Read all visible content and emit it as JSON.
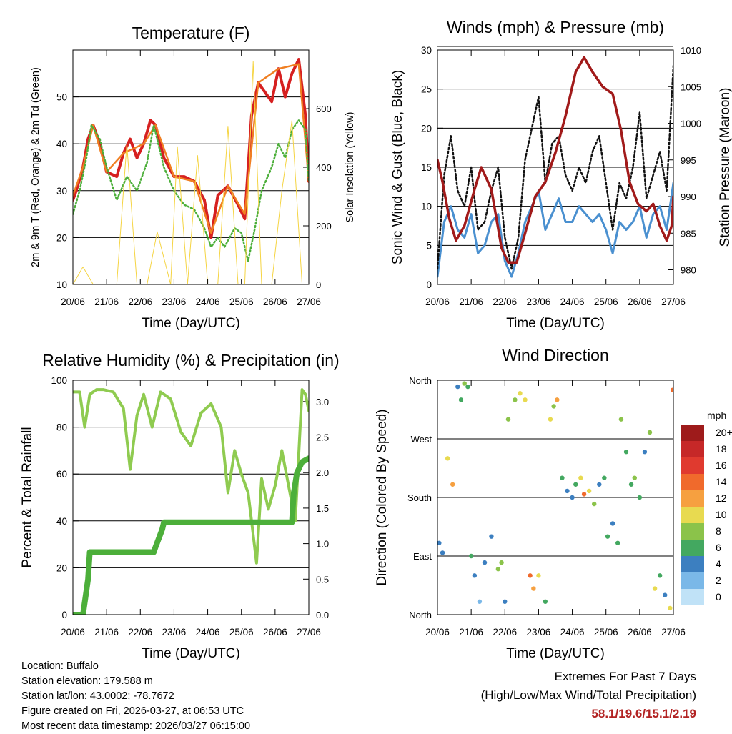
{
  "x_ticks": [
    "20/06",
    "21/06",
    "22/06",
    "23/06",
    "24/06",
    "25/06",
    "26/06",
    "27/06"
  ],
  "chart_data": [
    {
      "type": "line",
      "title": "Temperature (F)",
      "xlabel": "Time (Day/UTC)",
      "ylabel": "2m & 9m T (Red, Orange) & 2m Td (Green)",
      "ylabel_right": "Solar Insolation (Yellow)",
      "xlim": [
        0,
        7
      ],
      "ylim": [
        10,
        60
      ],
      "ylim_right": [
        0,
        800
      ],
      "yticks": [
        "10",
        "20",
        "30",
        "40",
        "50"
      ],
      "yticks_right": [
        "0",
        "200",
        "400",
        "600"
      ],
      "series": [
        {
          "name": "2m T",
          "color": "#d62020",
          "axis": "left",
          "x": [
            0,
            0.1,
            0.3,
            0.45,
            0.6,
            0.8,
            1.0,
            1.3,
            1.5,
            1.7,
            1.9,
            2.1,
            2.3,
            2.45,
            2.7,
            3.0,
            3.3,
            3.6,
            3.9,
            4.1,
            4.3,
            4.6,
            4.9,
            5.1,
            5.3,
            5.5,
            5.7,
            5.9,
            6.1,
            6.3,
            6.5,
            6.7,
            6.9,
            7.0
          ],
          "values": [
            28,
            30,
            35,
            41,
            44,
            40,
            34,
            33,
            38,
            41,
            37,
            40,
            45,
            44,
            37,
            33,
            33,
            32,
            28,
            20,
            29,
            31,
            27,
            24,
            46,
            53,
            51,
            49,
            56,
            50,
            55,
            58,
            46,
            32
          ]
        },
        {
          "name": "9m T",
          "color": "#f07f22",
          "axis": "left",
          "x": [
            0,
            0.3,
            0.6,
            1.0,
            1.5,
            2.1,
            2.45,
            3.0,
            3.6,
            4.1,
            4.6,
            5.1,
            5.5,
            6.1,
            6.7,
            7.0
          ],
          "values": [
            29,
            35,
            44,
            34,
            38,
            40,
            44,
            33,
            32,
            21,
            31,
            25,
            53,
            56,
            57,
            32
          ]
        },
        {
          "name": "2m Td",
          "color": "#4caf3a",
          "axis": "left",
          "x": [
            0,
            0.2,
            0.4,
            0.55,
            0.8,
            1.0,
            1.3,
            1.6,
            1.9,
            2.2,
            2.4,
            2.7,
            3.0,
            3.3,
            3.6,
            3.9,
            4.1,
            4.3,
            4.5,
            4.8,
            5.0,
            5.2,
            5.4,
            5.6,
            5.9,
            6.1,
            6.3,
            6.5,
            6.7,
            6.9,
            7.0
          ],
          "values": [
            25,
            30,
            37,
            44,
            41,
            35,
            28,
            33,
            30,
            36,
            44,
            35,
            30,
            27,
            26,
            22,
            18,
            20,
            18,
            22,
            21,
            15,
            22,
            30,
            35,
            40,
            37,
            43,
            45,
            43,
            32
          ]
        },
        {
          "name": "Solar Insolation",
          "color": "#f5d442",
          "axis": "right",
          "x": [
            0,
            0.3,
            0.6,
            1.3,
            1.6,
            1.9,
            2.2,
            2.5,
            2.9,
            3.1,
            3.4,
            3.7,
            4.0,
            4.3,
            4.6,
            4.9,
            5.1,
            5.35,
            5.6,
            5.9,
            6.2,
            6.5,
            6.8,
            7.0
          ],
          "values": [
            0,
            60,
            0,
            0,
            480,
            0,
            0,
            180,
            0,
            470,
            0,
            440,
            0,
            0,
            540,
            0,
            0,
            760,
            0,
            0,
            320,
            560,
            0,
            0
          ]
        }
      ]
    },
    {
      "type": "line",
      "title": "Winds (mph) & Pressure (mb)",
      "xlabel": "Time (Day/UTC)",
      "ylabel": "Sonic Wind & Gust (Blue, Black)",
      "ylabel_right": "Station Pressure (Maroon)",
      "xlim": [
        0,
        7
      ],
      "ylim": [
        0,
        30
      ],
      "ylim_right": [
        978,
        1010
      ],
      "yticks": [
        "0",
        "5",
        "10",
        "15",
        "20",
        "25",
        "30"
      ],
      "yticks_right": [
        "980",
        "985",
        "990",
        "995",
        "1000",
        "1005",
        "1010"
      ],
      "series": [
        {
          "name": "Sonic Wind",
          "color": "#4a90d0",
          "axis": "left",
          "x": [
            0,
            0.2,
            0.4,
            0.6,
            0.8,
            1.0,
            1.2,
            1.4,
            1.6,
            1.8,
            2.0,
            2.2,
            2.4,
            2.6,
            2.8,
            3.0,
            3.2,
            3.4,
            3.6,
            3.8,
            4.0,
            4.2,
            4.4,
            4.6,
            4.8,
            5.0,
            5.2,
            5.4,
            5.6,
            5.8,
            6.0,
            6.2,
            6.4,
            6.6,
            6.8,
            7.0
          ],
          "values": [
            1,
            8,
            10,
            7,
            6,
            9,
            4,
            5,
            8,
            9,
            3,
            1,
            4,
            8,
            10,
            12,
            7,
            9,
            11,
            8,
            8,
            10,
            9,
            8,
            9,
            7,
            4,
            8,
            7,
            8,
            10,
            6,
            9,
            10,
            7,
            13
          ]
        },
        {
          "name": "Gust",
          "color": "#111111",
          "axis": "left",
          "x": [
            0,
            0.2,
            0.4,
            0.6,
            0.8,
            1.0,
            1.2,
            1.4,
            1.6,
            1.8,
            2.0,
            2.2,
            2.4,
            2.6,
            2.8,
            3.0,
            3.2,
            3.4,
            3.6,
            3.8,
            4.0,
            4.2,
            4.4,
            4.6,
            4.8,
            5.0,
            5.2,
            5.4,
            5.6,
            5.8,
            6.0,
            6.2,
            6.4,
            6.6,
            6.8,
            7.0
          ],
          "values": [
            2,
            14,
            19,
            12,
            10,
            15,
            7,
            8,
            12,
            15,
            6,
            2,
            6,
            16,
            20,
            24,
            13,
            18,
            19,
            14,
            12,
            15,
            13,
            17,
            19,
            13,
            7,
            13,
            11,
            15,
            22,
            11,
            14,
            17,
            12,
            28
          ]
        },
        {
          "name": "Station Pressure",
          "color": "#a11a1a",
          "axis": "right",
          "x": [
            0,
            0.15,
            0.35,
            0.55,
            0.8,
            1.1,
            1.3,
            1.6,
            1.9,
            2.1,
            2.35,
            2.6,
            2.9,
            3.2,
            3.5,
            3.8,
            4.1,
            4.35,
            4.6,
            4.9,
            5.2,
            5.45,
            5.7,
            5.95,
            6.2,
            6.4,
            6.6,
            6.8,
            6.95,
            7.0
          ],
          "values": [
            995,
            992,
            987,
            984,
            986,
            991,
            994,
            991,
            983,
            981,
            981,
            985,
            990,
            992,
            996,
            1001,
            1007,
            1009,
            1007,
            1005,
            1004,
            999,
            992,
            989,
            988,
            989,
            986,
            984,
            986,
            990
          ]
        }
      ]
    },
    {
      "type": "line",
      "title": "Relative Humidity (%) & Precipitation (in)",
      "xlabel": "Time (Day/UTC)",
      "ylabel": "Percent & Total Rainfall",
      "xlim": [
        0,
        7
      ],
      "ylim": [
        0,
        100
      ],
      "ylim_right": [
        0,
        3.3
      ],
      "yticks": [
        "0",
        "20",
        "40",
        "60",
        "80",
        "100"
      ],
      "yticks_right": [
        "0.0",
        "0.5",
        "1.0",
        "1.5",
        "2.0",
        "2.5",
        "3.0"
      ],
      "series": [
        {
          "name": "Relative Humidity",
          "color": "#8fcb50",
          "axis": "left",
          "x": [
            0,
            0.2,
            0.35,
            0.5,
            0.7,
            0.9,
            1.2,
            1.5,
            1.7,
            1.9,
            2.1,
            2.35,
            2.6,
            2.9,
            3.2,
            3.5,
            3.8,
            4.1,
            4.4,
            4.6,
            4.8,
            5.0,
            5.2,
            5.3,
            5.45,
            5.6,
            5.8,
            6.0,
            6.2,
            6.4,
            6.6,
            6.8,
            6.9,
            7.0
          ],
          "values": [
            95,
            95,
            80,
            94,
            96,
            96,
            95,
            88,
            62,
            85,
            94,
            80,
            95,
            92,
            78,
            72,
            86,
            90,
            80,
            52,
            70,
            60,
            52,
            40,
            22,
            58,
            45,
            55,
            70,
            55,
            40,
            96,
            94,
            87
          ]
        },
        {
          "name": "Total Rainfall",
          "color": "#4caf3a",
          "axis": "right",
          "x": [
            0,
            0.3,
            0.45,
            0.5,
            2.4,
            2.45,
            2.65,
            2.7,
            6.5,
            6.55,
            6.65,
            6.8,
            7.0
          ],
          "values": [
            0,
            0,
            0.5,
            0.88,
            0.88,
            0.95,
            1.2,
            1.3,
            1.3,
            1.7,
            2.0,
            2.15,
            2.2
          ]
        }
      ]
    },
    {
      "type": "scatter",
      "title": "Wind Direction",
      "xlabel": "Time (Day/UTC)",
      "ylabel": "Direction (Colored By Speed)",
      "xlim": [
        0,
        7
      ],
      "ylim": [
        0,
        360
      ],
      "yticks": [
        "North",
        "East",
        "South",
        "West",
        "North"
      ],
      "legend_title": "mph",
      "legend_labels": [
        "20+",
        "18",
        "16",
        "14",
        "12",
        "10",
        "8",
        "6",
        "4",
        "2",
        "0"
      ],
      "legend_colors": [
        "#9e1b1b",
        "#c62828",
        "#e03a2f",
        "#f06a2c",
        "#f6a040",
        "#e8da50",
        "#8bc34a",
        "#43a860",
        "#3c7fc0",
        "#7ab8e8",
        "#c0e2f7"
      ],
      "series": [
        {
          "name": "Direction",
          "x": [
            0.05,
            0.15,
            0.3,
            0.45,
            0.6,
            0.7,
            0.8,
            0.9,
            1.0,
            1.1,
            1.25,
            1.4,
            1.6,
            1.8,
            1.9,
            2.0,
            2.1,
            2.3,
            2.45,
            2.6,
            2.75,
            2.85,
            3.0,
            3.2,
            3.35,
            3.45,
            3.55,
            3.7,
            3.85,
            4.0,
            4.1,
            4.25,
            4.35,
            4.5,
            4.65,
            4.8,
            4.95,
            5.05,
            5.2,
            5.35,
            5.45,
            5.6,
            5.75,
            5.85,
            6.0,
            6.15,
            6.3,
            6.45,
            6.6,
            6.75,
            6.9,
            6.98
          ],
          "values": [
            110,
            95,
            240,
            200,
            350,
            330,
            355,
            350,
            90,
            60,
            20,
            80,
            120,
            70,
            80,
            20,
            300,
            330,
            340,
            330,
            60,
            40,
            60,
            20,
            300,
            320,
            330,
            210,
            190,
            180,
            200,
            210,
            185,
            190,
            170,
            200,
            210,
            120,
            140,
            110,
            300,
            250,
            200,
            210,
            180,
            250,
            280,
            40,
            60,
            30,
            10,
            345
          ],
          "speeds": [
            3,
            4,
            9,
            12,
            4,
            6,
            8,
            5,
            5,
            3,
            2,
            4,
            4,
            8,
            7,
            3,
            7,
            8,
            10,
            9,
            14,
            12,
            9,
            6,
            9,
            7,
            11,
            5,
            4,
            4,
            6,
            10,
            14,
            9,
            7,
            4,
            5,
            5,
            4,
            6,
            7,
            5,
            6,
            7,
            6,
            4,
            8,
            10,
            5,
            3,
            9,
            14
          ]
        }
      ]
    }
  ],
  "info": {
    "location": "Location: Buffalo",
    "elevation": "Station elevation: 179.588 m",
    "latlon": "Station lat/lon: 43.0002; -78.7672",
    "created": "Figure created on Fri, 2026-03-27, at 06:53 UTC",
    "recent": "Most recent data timestamp: 2026/03/27 06:15:00"
  },
  "extremes": {
    "title": "Extremes For Past 7 Days",
    "subtitle": "(High/Low/Max Wind/Total Precipitation)",
    "values": "58.1/19.6/15.1/2.19"
  }
}
